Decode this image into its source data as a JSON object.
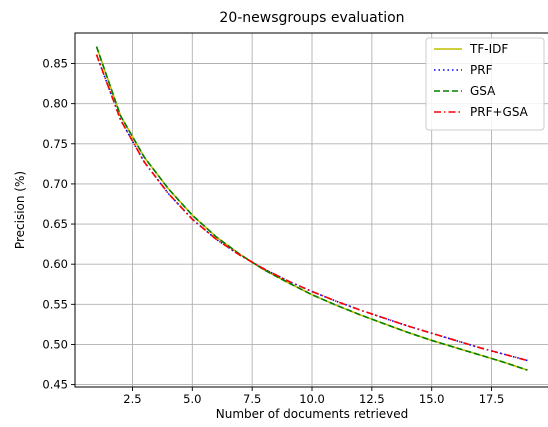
{
  "chart_data": {
    "type": "line",
    "title": "20-newsgroups evaluation",
    "xlabel": "Number of documents retrieved",
    "ylabel": "Precision (%)",
    "xlim": [
      0.1,
      19.9
    ],
    "ylim": [
      0.447,
      0.888
    ],
    "xticks": [
      2.5,
      5.0,
      7.5,
      10.0,
      12.5,
      15.0,
      17.5
    ],
    "xtick_labels": [
      "2.5",
      "5.0",
      "7.5",
      "10.0",
      "12.5",
      "15.0",
      "17.5"
    ],
    "yticks": [
      0.45,
      0.5,
      0.55,
      0.6,
      0.65,
      0.7,
      0.75,
      0.8,
      0.85
    ],
    "ytick_labels": [
      "0.45",
      "0.50",
      "0.55",
      "0.60",
      "0.65",
      "0.70",
      "0.75",
      "0.80",
      "0.85"
    ],
    "grid": true,
    "legend_position": "top-right",
    "x": [
      1,
      2,
      3,
      4,
      5,
      6,
      7,
      8,
      9,
      10,
      11,
      12,
      13,
      14,
      15,
      16,
      17,
      18,
      19
    ],
    "series": [
      {
        "name": "TF-IDF",
        "color": "#bfbf00",
        "style": "solid",
        "values": [
          0.871,
          0.785,
          0.733,
          0.694,
          0.661,
          0.634,
          0.612,
          0.593,
          0.577,
          0.562,
          0.549,
          0.537,
          0.526,
          0.515,
          0.505,
          0.496,
          0.487,
          0.478,
          0.468
        ]
      },
      {
        "name": "PRF",
        "color": "#0000ff",
        "style": "dotted",
        "values": [
          0.861,
          0.78,
          0.727,
          0.688,
          0.656,
          0.631,
          0.611,
          0.594,
          0.579,
          0.566,
          0.554,
          0.543,
          0.533,
          0.523,
          0.514,
          0.505,
          0.496,
          0.488,
          0.48
        ]
      },
      {
        "name": "GSA",
        "color": "#008000",
        "style": "dashed",
        "values": [
          0.871,
          0.785,
          0.733,
          0.694,
          0.661,
          0.634,
          0.612,
          0.593,
          0.577,
          0.562,
          0.549,
          0.537,
          0.526,
          0.515,
          0.505,
          0.496,
          0.487,
          0.478,
          0.468
        ]
      },
      {
        "name": "PRF+GSA",
        "color": "#ff0000",
        "style": "dashdot",
        "values": [
          0.861,
          0.78,
          0.727,
          0.688,
          0.656,
          0.631,
          0.611,
          0.594,
          0.579,
          0.566,
          0.554,
          0.543,
          0.533,
          0.523,
          0.514,
          0.505,
          0.496,
          0.488,
          0.48
        ]
      }
    ]
  }
}
